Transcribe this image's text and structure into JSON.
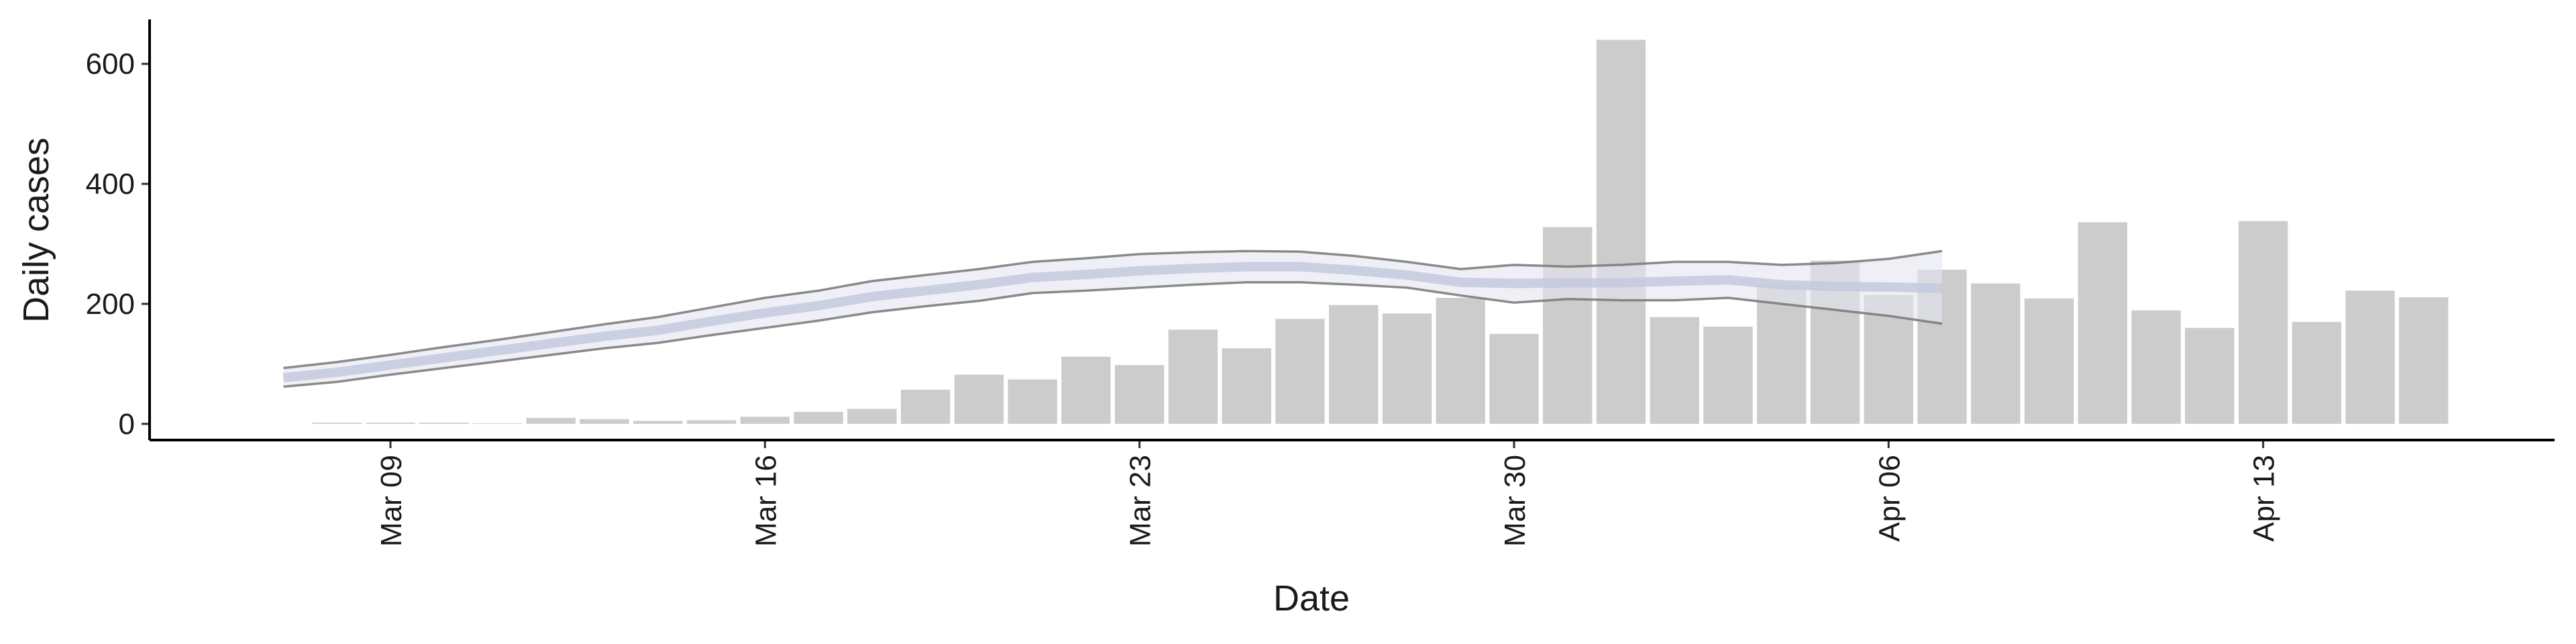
{
  "chart_data": {
    "type": "bar",
    "x_label": "Date",
    "y_label": "Daily cases",
    "categories": [
      null,
      null,
      "Mar 09",
      null,
      null,
      null,
      null,
      null,
      null,
      "Mar 16",
      null,
      null,
      null,
      null,
      null,
      null,
      "Mar 23",
      null,
      null,
      null,
      null,
      null,
      null,
      "Mar 30",
      null,
      null,
      null,
      null,
      null,
      null,
      "Apr 06",
      null,
      null,
      null,
      null,
      null,
      null,
      "Apr 13",
      null,
      null,
      null
    ],
    "values": [
      null,
      2,
      2,
      2,
      1,
      10,
      8,
      5,
      6,
      12,
      20,
      25,
      57,
      82,
      74,
      112,
      98,
      157,
      126,
      175,
      198,
      184,
      210,
      150,
      328,
      640,
      178,
      162,
      232,
      272,
      215,
      257,
      234,
      209,
      336,
      189,
      160,
      338,
      170,
      222,
      211
    ],
    "color": "#cccccc",
    "estimate": {
      "values": [
        77,
        86,
        98,
        110,
        122,
        134,
        146,
        156,
        171,
        185,
        197,
        212,
        222,
        232,
        244,
        249,
        255,
        259,
        262,
        262,
        256,
        248,
        236,
        234,
        235,
        235,
        238,
        240,
        232,
        229,
        228,
        226,
        null,
        null,
        null,
        null,
        null,
        null,
        null,
        null,
        null
      ],
      "lower": [
        62,
        70,
        82,
        93,
        104,
        115,
        126,
        135,
        148,
        160,
        172,
        186,
        196,
        205,
        218,
        222,
        227,
        232,
        236,
        236,
        232,
        227,
        214,
        202,
        208,
        206,
        206,
        210,
        200,
        190,
        180,
        167,
        null,
        null,
        null,
        null,
        null,
        null,
        null,
        null,
        null
      ],
      "upper": [
        93,
        103,
        115,
        128,
        140,
        153,
        166,
        178,
        194,
        210,
        222,
        238,
        248,
        258,
        270,
        276,
        283,
        286,
        288,
        287,
        280,
        270,
        258,
        265,
        262,
        265,
        270,
        270,
        265,
        268,
        275,
        288,
        null,
        null,
        null,
        null,
        null,
        null,
        null,
        null,
        null
      ],
      "line_color": "#c3c9de",
      "band_color": "#e3e6ef",
      "edge_color": "#777777"
    },
    "ylim": [
      -27,
      674
    ],
    "yticks": [
      0,
      200,
      400,
      600
    ]
  }
}
